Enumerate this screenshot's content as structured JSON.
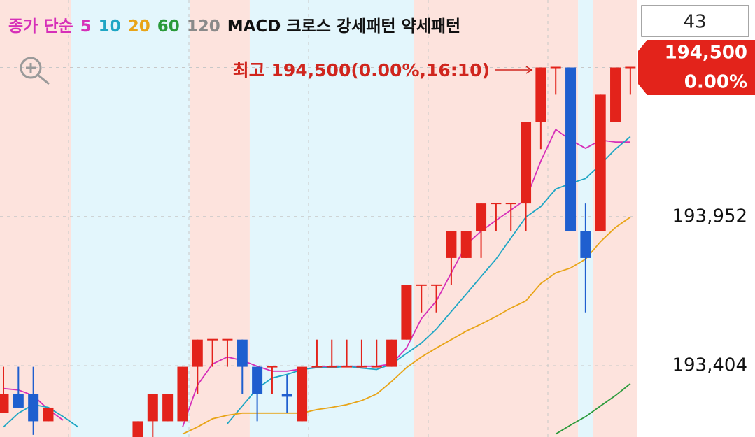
{
  "chart_data": {
    "type": "candlestick",
    "legend_prefix": "종가 단순",
    "legend_extra": [
      {
        "text": "120",
        "color": "#8a8a8a"
      },
      {
        "text": "MACD 크로스 강세패턴 약세패턴",
        "color": "#111111"
      }
    ],
    "count_label": "43",
    "annotation": "최고 194,500(0.00%,16:10)",
    "last_price": {
      "value": 194500,
      "label": "194,500",
      "change": 0,
      "change_label": "0.00%"
    },
    "ylim": [
      193142,
      194748
    ],
    "yticks": [
      {
        "value": 193952,
        "label": "193,952"
      },
      {
        "value": 193404,
        "label": "193,404"
      }
    ],
    "grid": true,
    "up_color": "#e3231b",
    "down_color": "#1f5fcf",
    "regions": [
      {
        "from": 0,
        "to": 4,
        "color": "#fde3dd"
      },
      {
        "from": 5,
        "to": 12,
        "color": "#e3f6fc"
      },
      {
        "from": 13,
        "to": 16,
        "color": "#fde3dd"
      },
      {
        "from": 17,
        "to": 27,
        "color": "#e3f6fc"
      },
      {
        "from": 28,
        "to": 38,
        "color": "#fde3dd"
      },
      {
        "from": 39,
        "to": 39,
        "color": "#e3f6fc"
      },
      {
        "from": 40,
        "to": 42,
        "color": "#fde3dd"
      }
    ],
    "open": [
      193230,
      193300,
      193300,
      193200,
      null,
      null,
      null,
      null,
      null,
      193100,
      193200,
      193200,
      193200,
      193400,
      193500,
      193500,
      193500,
      193400,
      193400,
      193300,
      193200,
      193400,
      193400,
      193400,
      193400,
      193400,
      193400,
      193500,
      193700,
      193700,
      193800,
      193800,
      193900,
      194000,
      194000,
      194000,
      194300,
      194500,
      194500,
      193900,
      193900,
      194300,
      194500
    ],
    "high": [
      193400,
      193400,
      193400,
      193250,
      null,
      null,
      null,
      null,
      null,
      193200,
      193300,
      193300,
      193400,
      193500,
      193500,
      193500,
      193500,
      193400,
      193400,
      193370,
      193400,
      193500,
      193500,
      193500,
      193500,
      193500,
      193500,
      193700,
      193700,
      193700,
      193900,
      193900,
      194000,
      194000,
      194000,
      194300,
      194500,
      194500,
      194500,
      194000,
      194400,
      194500,
      194500
    ],
    "low": [
      193230,
      193250,
      193150,
      193200,
      null,
      null,
      null,
      null,
      null,
      193100,
      193100,
      193200,
      193200,
      193300,
      193400,
      193400,
      193300,
      193200,
      193300,
      193230,
      193200,
      193400,
      193400,
      193400,
      193400,
      193400,
      193400,
      193500,
      193600,
      193600,
      193700,
      193800,
      193800,
      193900,
      193900,
      193900,
      194200,
      194400,
      193900,
      193600,
      193900,
      194300,
      194400
    ],
    "close": [
      193300,
      193250,
      193200,
      193250,
      null,
      null,
      null,
      null,
      null,
      193200,
      193300,
      193300,
      193400,
      193500,
      193500,
      193500,
      193400,
      193300,
      193400,
      193290,
      193400,
      193400,
      193400,
      193400,
      193400,
      193400,
      193500,
      193700,
      193700,
      193700,
      193900,
      193900,
      194000,
      194000,
      194000,
      194300,
      194500,
      194500,
      193900,
      193800,
      194400,
      194500,
      194500
    ],
    "series": [
      {
        "name": "5",
        "color": "#d62fb8",
        "values": [
          193320,
          193315,
          193294,
          193243,
          193204,
          null,
          null,
          null,
          null,
          null,
          null,
          null,
          193179,
          193333,
          193410,
          193436,
          193423,
          193402,
          193384,
          193384,
          193392,
          193397,
          193402,
          193402,
          193402,
          193402,
          193410,
          193469,
          193577,
          193642,
          193745,
          193848,
          193899,
          193938,
          193976,
          194015,
          194156,
          194272,
          194233,
          194203,
          194233,
          194226,
          194226
        ]
      },
      {
        "name": "10",
        "color": "#1ea6c4",
        "values": [
          193179,
          193230,
          193261,
          193251,
          193217,
          193179,
          null,
          null,
          null,
          null,
          null,
          null,
          null,
          null,
          null,
          193191,
          193256,
          193320,
          193359,
          193372,
          193390,
          193397,
          193397,
          193402,
          193395,
          193390,
          193410,
          193449,
          193487,
          193539,
          193603,
          193667,
          193732,
          193796,
          193873,
          193950,
          193989,
          194053,
          194074,
          194092,
          194143,
          194200,
          194246
        ]
      },
      {
        "name": "20",
        "color": "#e8a417",
        "values": [
          null,
          null,
          null,
          null,
          null,
          null,
          null,
          null,
          null,
          null,
          null,
          null,
          193153,
          193179,
          193209,
          193222,
          193230,
          193230,
          193230,
          193230,
          193230,
          193243,
          193251,
          193261,
          193276,
          193300,
          193346,
          193397,
          193436,
          193469,
          193500,
          193531,
          193557,
          193585,
          193616,
          193642,
          193706,
          193745,
          193763,
          193796,
          193860,
          193912,
          193950
        ]
      },
      {
        "name": "60",
        "color": "#2a9a3a",
        "values": [
          null,
          null,
          null,
          null,
          null,
          null,
          null,
          null,
          null,
          null,
          null,
          null,
          null,
          null,
          null,
          null,
          null,
          null,
          null,
          null,
          null,
          null,
          null,
          null,
          null,
          null,
          null,
          null,
          null,
          null,
          null,
          null,
          null,
          null,
          null,
          null,
          null,
          193153,
          193186,
          193217,
          193256,
          193294,
          193338
        ]
      }
    ]
  }
}
